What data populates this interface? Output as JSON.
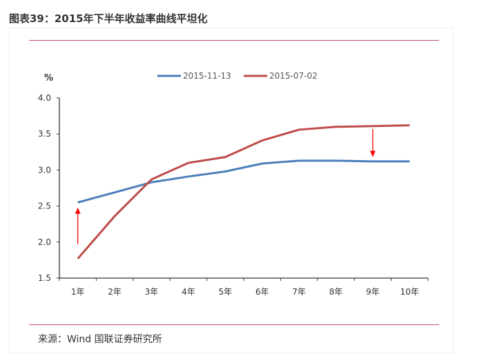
{
  "title": "图表39：2015年下半年收益率曲线平坦化",
  "source": "来源：Wind 国联证券研究所",
  "chart_data": {
    "type": "line",
    "ylabel": "%",
    "ylim": [
      1.5,
      4.0
    ],
    "yticks": [
      "1.5",
      "2.0",
      "2.5",
      "3.0",
      "3.5",
      "4.0"
    ],
    "categories": [
      "1年",
      "2年",
      "3年",
      "4年",
      "5年",
      "6年",
      "7年",
      "8年",
      "9年",
      "10年"
    ],
    "legend_position": "top",
    "series": [
      {
        "name": "2015-11-13",
        "color": "#4a7ebb",
        "values": [
          2.55,
          2.69,
          2.83,
          2.91,
          2.98,
          3.09,
          3.13,
          3.13,
          3.12,
          3.12
        ]
      },
      {
        "name": "2015-07-02",
        "color": "#be4b48",
        "values": [
          1.77,
          2.36,
          2.87,
          3.1,
          3.18,
          3.41,
          3.56,
          3.6,
          3.61,
          3.62
        ]
      }
    ],
    "annotations": [
      {
        "type": "arrow-up",
        "category": "1年",
        "from": 1.97,
        "to": 2.48,
        "color": "#ff0000"
      },
      {
        "type": "arrow-down",
        "category": "9年",
        "from": 3.57,
        "to": 3.18,
        "color": "#ff0000"
      }
    ]
  }
}
